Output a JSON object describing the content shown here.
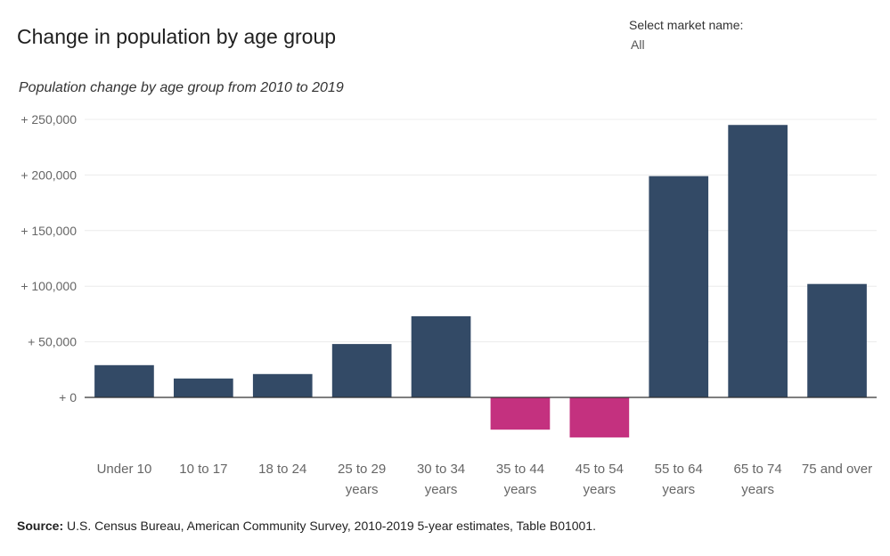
{
  "header": {
    "title": "Change in population by age group",
    "filter_label": "Select market name:",
    "filter_value": "All"
  },
  "chart_data": {
    "type": "bar",
    "subtitle": "Population change by age group from 2010 to 2019",
    "categories": [
      [
        "Under 10"
      ],
      [
        "10 to 17"
      ],
      [
        "18 to 24"
      ],
      [
        "25 to 29",
        "years"
      ],
      [
        "30 to 34",
        "years"
      ],
      [
        "35 to 44",
        "years"
      ],
      [
        "45 to 54",
        "years"
      ],
      [
        "55 to 64",
        "years"
      ],
      [
        "65 to 74",
        "years"
      ],
      [
        "75 and over"
      ]
    ],
    "values": [
      29000,
      17000,
      21000,
      48000,
      73000,
      -29000,
      -36000,
      199000,
      245000,
      102000
    ],
    "yticks": [
      0,
      50000,
      100000,
      150000,
      200000,
      250000
    ],
    "ytick_labels": [
      "+ 0",
      "+ 50,000",
      "+ 100,000",
      "+ 150,000",
      "+ 200,000",
      "+ 250,000"
    ],
    "ylim": [
      -50000,
      250000
    ],
    "grid": true,
    "colors": {
      "positive": "#334a66",
      "negative": "#c4317f",
      "grid": "#ececec",
      "axis": "#333333"
    }
  },
  "footer": {
    "source_label": "Source:",
    "source_text": " U.S. Census Bureau, American Community Survey, 2010-2019 5-year estimates, Table B01001."
  }
}
